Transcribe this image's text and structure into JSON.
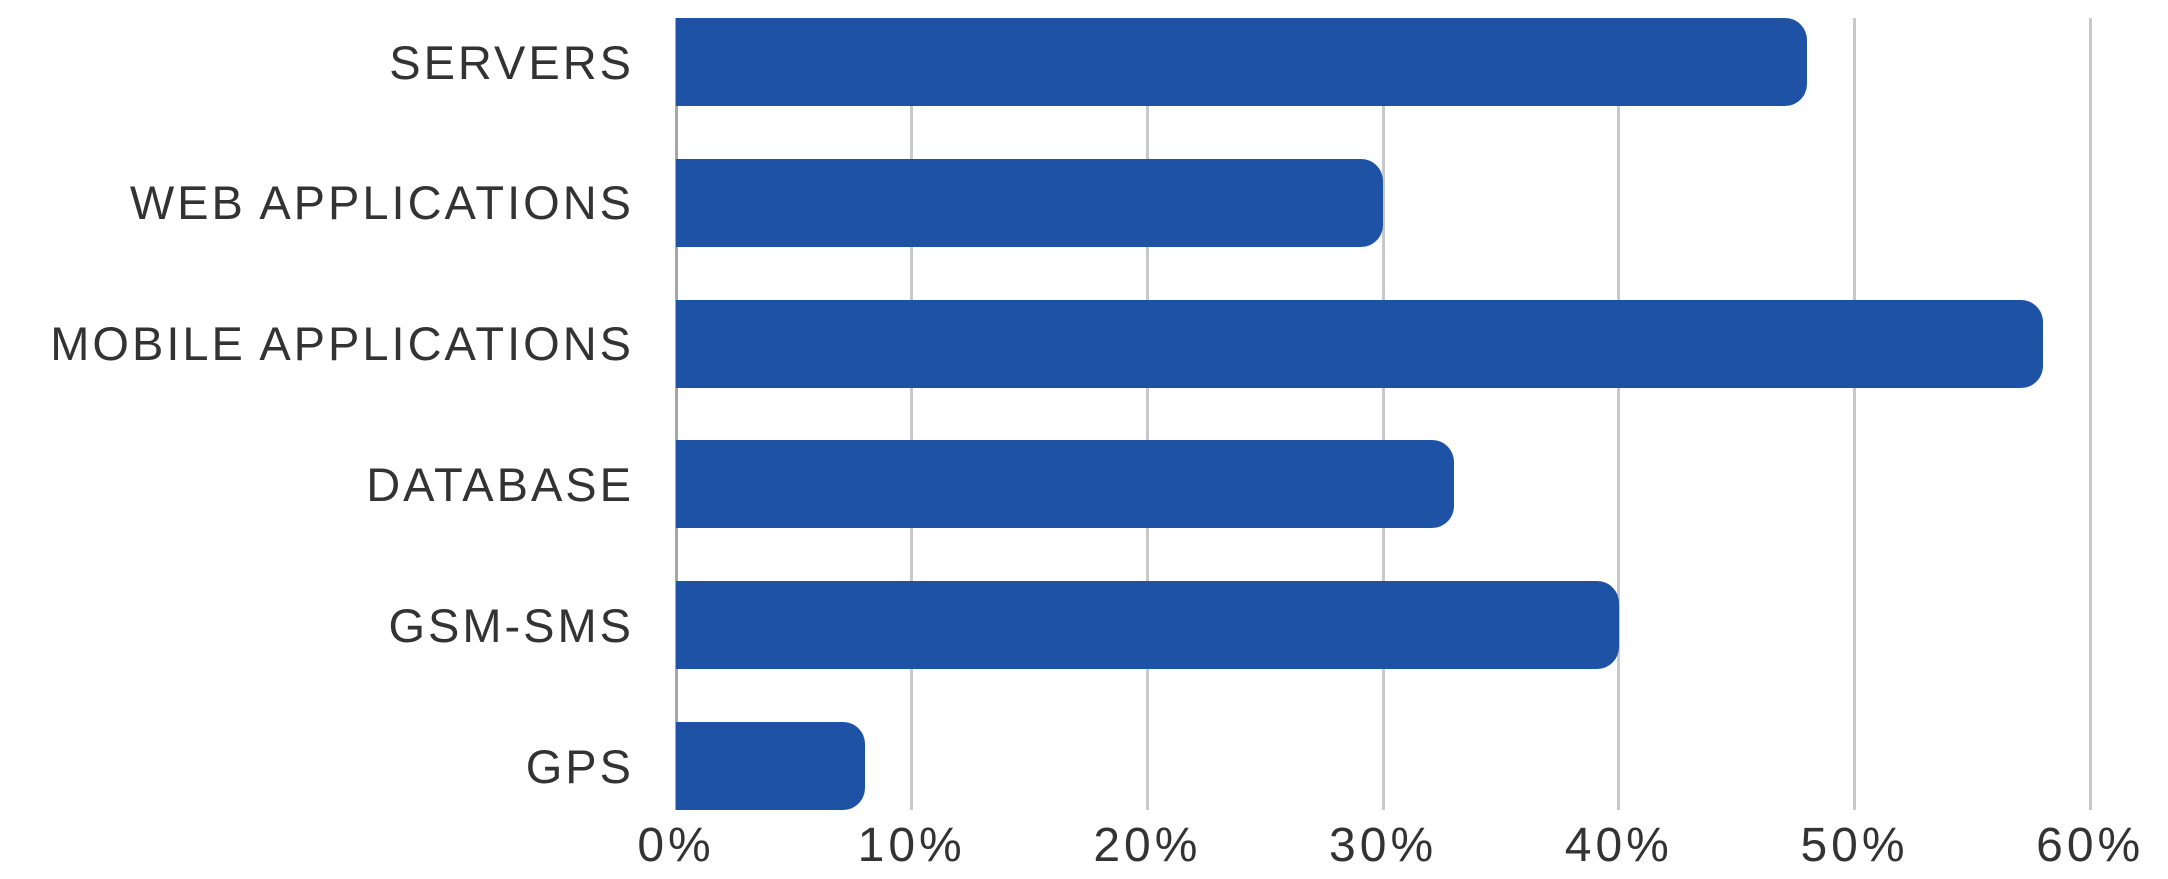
{
  "chart_data": {
    "type": "bar",
    "orientation": "horizontal",
    "title": "",
    "categories": [
      "SERVERS",
      "WEB APPLICATIONS",
      "MOBILE APPLICATIONS",
      "DATABASE",
      "GSM-SMS",
      "GPS"
    ],
    "values": [
      48,
      30,
      58,
      33,
      40,
      8
    ],
    "value_unit": "%",
    "xlabel": "",
    "ylabel": "",
    "xlim": [
      0,
      60
    ],
    "x_tick_labels": [
      "0%",
      "10%",
      "20%",
      "30%",
      "40%",
      "50%",
      "60%"
    ],
    "x_tick_step": 10,
    "grid": "vertical-gridlines-on",
    "legend": "none",
    "colors": {
      "bar": "#1E52A5",
      "gridline": "#C9C9C9",
      "axis_line": "#A6A6A6",
      "label_text": "#333333",
      "background": "#FFFFFF"
    }
  }
}
